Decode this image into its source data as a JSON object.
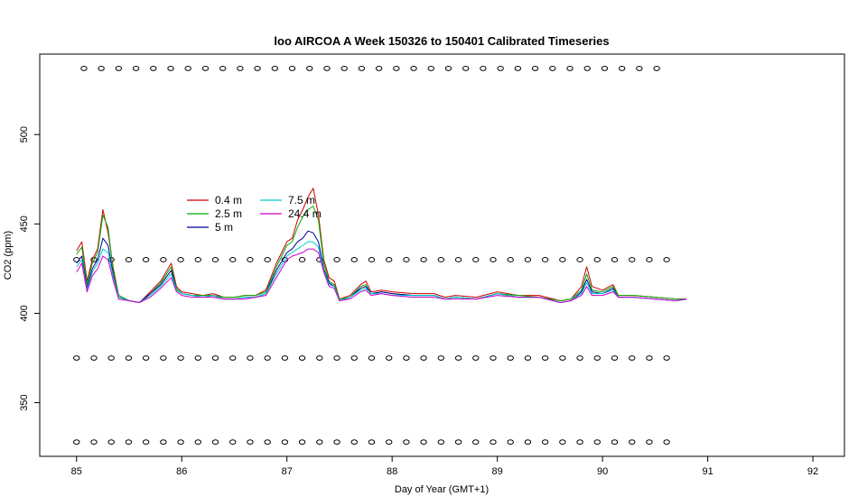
{
  "chart_data": {
    "type": "line",
    "title": "loo AIRCOA A  Week 150326 to 150401  Calibrated Timeseries",
    "xlabel": "Day of Year (GMT+1)",
    "ylabel": "CO2 (ppm)",
    "xlim": [
      84.65,
      92.3
    ],
    "ylim": [
      320,
      545
    ],
    "x_ticks": [
      85,
      86,
      87,
      88,
      89,
      90,
      91,
      92
    ],
    "y_ticks": [
      350,
      400,
      450,
      500
    ],
    "legend_placement": "upper-left",
    "legend_columns": 2,
    "series": [
      {
        "name": "0.4 m",
        "color": "#cc0000",
        "x": [
          85.0,
          85.05,
          85.1,
          85.15,
          85.2,
          85.25,
          85.3,
          85.35,
          85.4,
          85.5,
          85.6,
          85.7,
          85.8,
          85.9,
          85.95,
          86.0,
          86.1,
          86.2,
          86.3,
          86.4,
          86.5,
          86.6,
          86.7,
          86.8,
          86.9,
          87.0,
          87.05,
          87.1,
          87.15,
          87.2,
          87.25,
          87.3,
          87.35,
          87.4,
          87.45,
          87.5,
          87.6,
          87.7,
          87.75,
          87.8,
          87.9,
          88.0,
          88.2,
          88.4,
          88.5,
          88.6,
          88.8,
          89.0,
          89.2,
          89.4,
          89.6,
          89.7,
          89.8,
          89.85,
          89.9,
          90.0,
          90.1,
          90.15,
          90.3,
          90.5,
          90.7,
          90.8
        ],
        "y": [
          435,
          440,
          418,
          430,
          436,
          458,
          445,
          425,
          410,
          407,
          406,
          412,
          418,
          428,
          415,
          412,
          411,
          410,
          411,
          409,
          409,
          410,
          410,
          413,
          428,
          440,
          442,
          452,
          458,
          465,
          470,
          455,
          430,
          420,
          418,
          408,
          410,
          416,
          418,
          412,
          413,
          412,
          411,
          411,
          409,
          410,
          409,
          412,
          410,
          410,
          407,
          408,
          415,
          426,
          415,
          413,
          416,
          410,
          410,
          409,
          408,
          408
        ]
      },
      {
        "name": "2.5 m",
        "color": "#00aa00",
        "x": [
          85.0,
          85.05,
          85.1,
          85.15,
          85.2,
          85.25,
          85.3,
          85.35,
          85.4,
          85.5,
          85.6,
          85.7,
          85.8,
          85.9,
          85.95,
          86.0,
          86.1,
          86.2,
          86.3,
          86.4,
          86.5,
          86.6,
          86.7,
          86.8,
          86.9,
          87.0,
          87.05,
          87.1,
          87.15,
          87.2,
          87.25,
          87.3,
          87.35,
          87.4,
          87.45,
          87.5,
          87.6,
          87.7,
          87.75,
          87.8,
          87.9,
          88.0,
          88.2,
          88.4,
          88.5,
          88.6,
          88.8,
          89.0,
          89.2,
          89.4,
          89.6,
          89.7,
          89.8,
          89.85,
          89.9,
          90.0,
          90.1,
          90.15,
          90.3,
          90.5,
          90.7,
          90.8
        ],
        "y": [
          433,
          437,
          416,
          428,
          434,
          455,
          448,
          423,
          410,
          407,
          406,
          411,
          417,
          426,
          414,
          411,
          410,
          410,
          410,
          409,
          409,
          410,
          410,
          412,
          426,
          438,
          440,
          448,
          454,
          458,
          460,
          452,
          428,
          418,
          416,
          408,
          409,
          415,
          416,
          411,
          412,
          411,
          410,
          410,
          408,
          409,
          408,
          411,
          410,
          409,
          407,
          408,
          413,
          422,
          413,
          412,
          415,
          410,
          410,
          409,
          408,
          408
        ]
      },
      {
        "name": "5 m",
        "color": "#000099",
        "x": [
          85.0,
          85.05,
          85.1,
          85.15,
          85.2,
          85.25,
          85.3,
          85.35,
          85.4,
          85.5,
          85.6,
          85.7,
          85.8,
          85.9,
          85.95,
          86.0,
          86.1,
          86.2,
          86.3,
          86.4,
          86.5,
          86.6,
          86.7,
          86.8,
          86.9,
          87.0,
          87.05,
          87.1,
          87.15,
          87.2,
          87.25,
          87.3,
          87.35,
          87.4,
          87.45,
          87.5,
          87.6,
          87.7,
          87.75,
          87.8,
          87.9,
          88.0,
          88.2,
          88.4,
          88.5,
          88.6,
          88.8,
          89.0,
          89.2,
          89.4,
          89.6,
          89.7,
          89.8,
          89.85,
          89.9,
          90.0,
          90.1,
          90.15,
          90.3,
          90.5,
          90.7,
          90.8
        ],
        "y": [
          428,
          432,
          414,
          425,
          430,
          442,
          438,
          421,
          409,
          407,
          406,
          411,
          416,
          424,
          413,
          411,
          410,
          409,
          410,
          408,
          408,
          409,
          409,
          411,
          424,
          434,
          436,
          440,
          442,
          446,
          445,
          440,
          425,
          417,
          415,
          407,
          409,
          414,
          415,
          411,
          412,
          411,
          410,
          410,
          408,
          409,
          408,
          411,
          409,
          409,
          406,
          407,
          412,
          419,
          412,
          411,
          414,
          409,
          409,
          408,
          407,
          408
        ]
      },
      {
        "name": "7.5 m",
        "color": "#00cccc",
        "x": [
          85.0,
          85.05,
          85.1,
          85.15,
          85.2,
          85.25,
          85.3,
          85.35,
          85.4,
          85.5,
          85.6,
          85.7,
          85.8,
          85.9,
          85.95,
          86.0,
          86.1,
          86.2,
          86.3,
          86.4,
          86.5,
          86.6,
          86.7,
          86.8,
          86.9,
          87.0,
          87.05,
          87.1,
          87.15,
          87.2,
          87.25,
          87.3,
          87.35,
          87.4,
          87.45,
          87.5,
          87.6,
          87.7,
          87.75,
          87.8,
          87.9,
          88.0,
          88.2,
          88.4,
          88.5,
          88.6,
          88.8,
          89.0,
          89.2,
          89.4,
          89.6,
          89.7,
          89.8,
          89.85,
          89.9,
          90.0,
          90.1,
          90.15,
          90.3,
          90.5,
          90.7,
          90.8
        ],
        "y": [
          426,
          430,
          413,
          423,
          428,
          436,
          434,
          420,
          409,
          407,
          406,
          410,
          415,
          422,
          413,
          411,
          410,
          409,
          410,
          408,
          408,
          409,
          409,
          411,
          422,
          432,
          434,
          436,
          438,
          440,
          440,
          437,
          424,
          416,
          415,
          407,
          409,
          413,
          414,
          411,
          411,
          410,
          410,
          410,
          408,
          409,
          408,
          411,
          409,
          409,
          406,
          407,
          411,
          417,
          411,
          411,
          413,
          409,
          409,
          408,
          407,
          408
        ]
      },
      {
        "name": "24.4 m",
        "color": "#cc00cc",
        "x": [
          85.0,
          85.05,
          85.1,
          85.15,
          85.2,
          85.25,
          85.3,
          85.35,
          85.4,
          85.5,
          85.6,
          85.7,
          85.8,
          85.9,
          85.95,
          86.0,
          86.1,
          86.2,
          86.3,
          86.4,
          86.5,
          86.6,
          86.7,
          86.8,
          86.9,
          87.0,
          87.05,
          87.1,
          87.15,
          87.2,
          87.25,
          87.3,
          87.35,
          87.4,
          87.45,
          87.5,
          87.6,
          87.7,
          87.75,
          87.8,
          87.9,
          88.0,
          88.2,
          88.4,
          88.5,
          88.6,
          88.8,
          89.0,
          89.2,
          89.4,
          89.6,
          89.7,
          89.8,
          89.85,
          89.9,
          90.0,
          90.1,
          90.15,
          90.3,
          90.5,
          90.7,
          90.8
        ],
        "y": [
          423,
          428,
          412,
          421,
          425,
          432,
          430,
          418,
          408,
          407,
          406,
          409,
          414,
          420,
          412,
          410,
          409,
          409,
          409,
          408,
          408,
          408,
          409,
          410,
          420,
          430,
          432,
          433,
          434,
          436,
          436,
          434,
          423,
          415,
          414,
          407,
          408,
          412,
          413,
          410,
          411,
          410,
          409,
          409,
          408,
          408,
          408,
          410,
          409,
          409,
          406,
          407,
          410,
          415,
          410,
          410,
          412,
          409,
          409,
          408,
          407,
          408
        ]
      }
    ],
    "marker_rows": [
      {
        "y": 537,
        "x_start": 85.07,
        "x_end": 90.65,
        "step": 0.165
      },
      {
        "y": 430,
        "x_start": 85.0,
        "x_end": 90.65,
        "step": 0.165
      },
      {
        "y": 375,
        "x_start": 85.0,
        "x_end": 90.72,
        "step": 0.165
      },
      {
        "y": 328,
        "x_start": 85.0,
        "x_end": 90.72,
        "step": 0.165
      }
    ]
  }
}
